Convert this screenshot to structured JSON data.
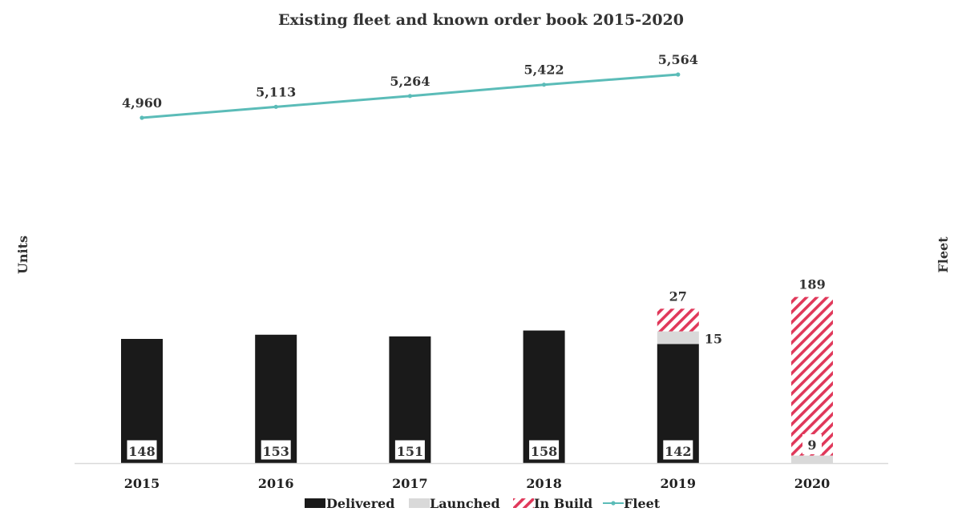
{
  "chart_data": {
    "type": "bar",
    "title": "Existing fleet and known order book 2015-2020",
    "ylabel": "Units",
    "y2label": "Fleet",
    "categories": [
      "2015",
      "2016",
      "2017",
      "2018",
      "2019",
      "2020"
    ],
    "stack_series": [
      {
        "name": "Delivered",
        "color": "#1a1a1a",
        "pattern": "solid",
        "values": [
          148,
          153,
          151,
          158,
          142,
          null
        ]
      },
      {
        "name": "Launched",
        "color": "#d9d9d9",
        "pattern": "solid",
        "values": [
          null,
          null,
          null,
          null,
          15,
          9
        ]
      },
      {
        "name": "In Build",
        "color": "#e0385a",
        "pattern": "diagonal-hatch",
        "values": [
          null,
          null,
          null,
          null,
          27,
          189
        ]
      }
    ],
    "line_series": {
      "name": "Fleet",
      "color": "#5bbcb8",
      "values": [
        4960,
        5113,
        5264,
        5422,
        5564,
        null
      ],
      "labels": [
        "4,960",
        "5,113",
        "5,264",
        "5,422",
        "5,564",
        ""
      ]
    },
    "legend_position": "bottom",
    "grid": false
  }
}
